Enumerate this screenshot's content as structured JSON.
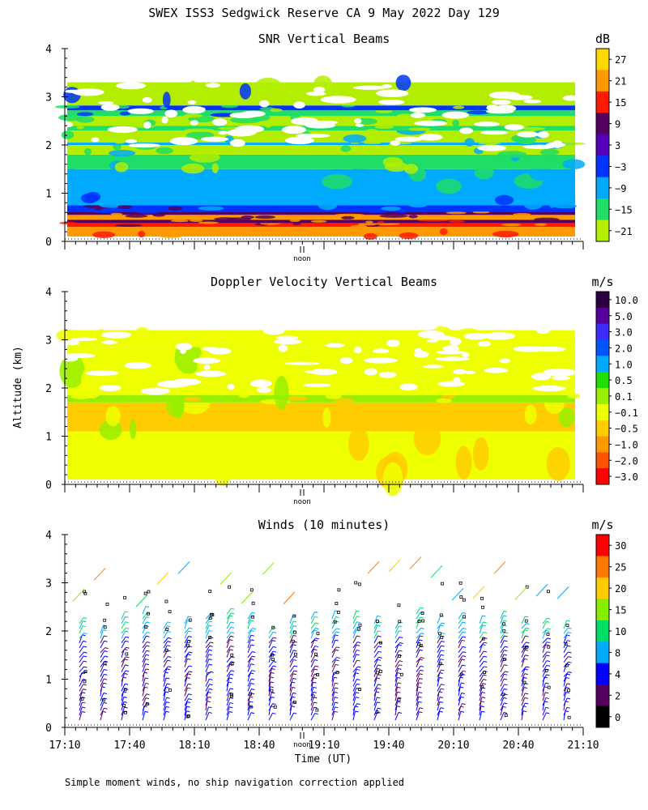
{
  "header": {
    "title": "SWEX ISS3 Sedgwick Reserve CA   9 May 2022 Day 129"
  },
  "footer": {
    "note": "Simple moment winds, no ship navigation correction applied"
  },
  "chart_data": [
    {
      "id": "snr",
      "type": "heatmap",
      "title": "SNR Vertical Beams",
      "ylabel": "Altitude (km)",
      "ylim": [
        0,
        4
      ],
      "yticks": [
        "0",
        "1",
        "2",
        "3",
        "4"
      ],
      "noon_label": "noon",
      "colorbar": {
        "unit": "dB",
        "labels": [
          "27",
          "21",
          "15",
          "9",
          "3",
          "−3",
          "−9",
          "−15",
          "−21"
        ],
        "colors": [
          "#ffd700",
          "#ff9900",
          "#ff1a00",
          "#55005f",
          "#5500bb",
          "#0033ff",
          "#00aaff",
          "#1fdd66",
          "#b3ee00"
        ]
      },
      "layers": [
        {
          "from": 0.1,
          "to": 0.3,
          "color": "#ff9900"
        },
        {
          "from": 0.3,
          "to": 0.38,
          "color": "#ff1a00"
        },
        {
          "from": 0.38,
          "to": 0.45,
          "color": "#55005f"
        },
        {
          "from": 0.45,
          "to": 0.55,
          "color": "#ff9900"
        },
        {
          "from": 0.55,
          "to": 0.62,
          "color": "#55005f"
        },
        {
          "from": 0.62,
          "to": 0.75,
          "color": "#0033ff"
        },
        {
          "from": 0.75,
          "to": 1.05,
          "color": "#00aaff"
        },
        {
          "from": 1.05,
          "to": 1.5,
          "color": "#00aaff"
        },
        {
          "from": 1.5,
          "to": 1.8,
          "color": "#1fdd66"
        },
        {
          "from": 1.8,
          "to": 2.0,
          "color": "#b3ee00"
        },
        {
          "from": 2.0,
          "to": 2.05,
          "color": "#00aaff"
        },
        {
          "from": 2.05,
          "to": 2.3,
          "color": "#b3ee00"
        },
        {
          "from": 2.3,
          "to": 2.4,
          "color": "#1fdd66"
        },
        {
          "from": 2.4,
          "to": 2.6,
          "color": "#b3ee00"
        },
        {
          "from": 2.6,
          "to": 2.72,
          "color": "#1fdd66"
        },
        {
          "from": 2.72,
          "to": 2.82,
          "color": "#0033ff"
        },
        {
          "from": 2.82,
          "to": 3.3,
          "color": "#b3ee00"
        }
      ]
    },
    {
      "id": "doppler",
      "type": "heatmap",
      "title": "Doppler Velocity Vertical Beams",
      "ylabel": "Altitude (km)",
      "ylim": [
        0,
        4
      ],
      "yticks": [
        "0",
        "1",
        "2",
        "3",
        "4"
      ],
      "noon_label": "noon",
      "colorbar": {
        "unit": "m/s",
        "labels": [
          "10.0",
          "5.0",
          "3.0",
          "2.0",
          "1.0",
          "0.5",
          "0.1",
          "−0.1",
          "−0.5",
          "−1.0",
          "−2.0",
          "−3.0"
        ],
        "colors": [
          "#2a0040",
          "#55009a",
          "#3a2cff",
          "#0055ff",
          "#00aaff",
          "#22dd00",
          "#99ee00",
          "#eeff00",
          "#ffcc00",
          "#ff9900",
          "#ff5500",
          "#ff0000"
        ]
      },
      "layers": [
        {
          "from": 0.1,
          "to": 1.1,
          "color": "#eeff00"
        },
        {
          "from": 1.1,
          "to": 1.7,
          "color": "#ffcc00"
        },
        {
          "from": 1.7,
          "to": 1.85,
          "color": "#99ee00"
        },
        {
          "from": 1.85,
          "to": 2.85,
          "color": "#eeff00"
        },
        {
          "from": 2.85,
          "to": 3.2,
          "color": "#eeff00"
        }
      ]
    },
    {
      "id": "winds",
      "type": "scatter",
      "title": "Winds (10 minutes)",
      "ylabel": "Altitude (km)",
      "xlabel": "Time (UT)",
      "ylim": [
        0,
        4
      ],
      "yticks": [
        "0",
        "1",
        "2",
        "3",
        "4"
      ],
      "xticks": [
        "17:10",
        "17:40",
        "18:10",
        "18:40",
        "19:10",
        "19:40",
        "20:10",
        "20:40",
        "21:10"
      ],
      "noon_label": "noon",
      "colorbar": {
        "unit": "m/s",
        "labels": [
          "30",
          "25",
          "20",
          "15",
          "10",
          "8",
          "4",
          "2",
          "0"
        ],
        "colors": [
          "#ff0000",
          "#ff7a00",
          "#ffcc00",
          "#88ee00",
          "#00dd66",
          "#00aaff",
          "#0000ff",
          "#55005f",
          "#000000"
        ]
      },
      "profiles_per_hour": 6,
      "profile_top_km": [
        2.2,
        2.0,
        2.3,
        2.4,
        2.1,
        2.2,
        2.3,
        2.4,
        2.3,
        2.0,
        2.2,
        2.3,
        2.3,
        2.3,
        2.2,
        2.1,
        2.4,
        2.2,
        2.3,
        2.2,
        2.3,
        2.2,
        2.2,
        2.1
      ]
    }
  ]
}
